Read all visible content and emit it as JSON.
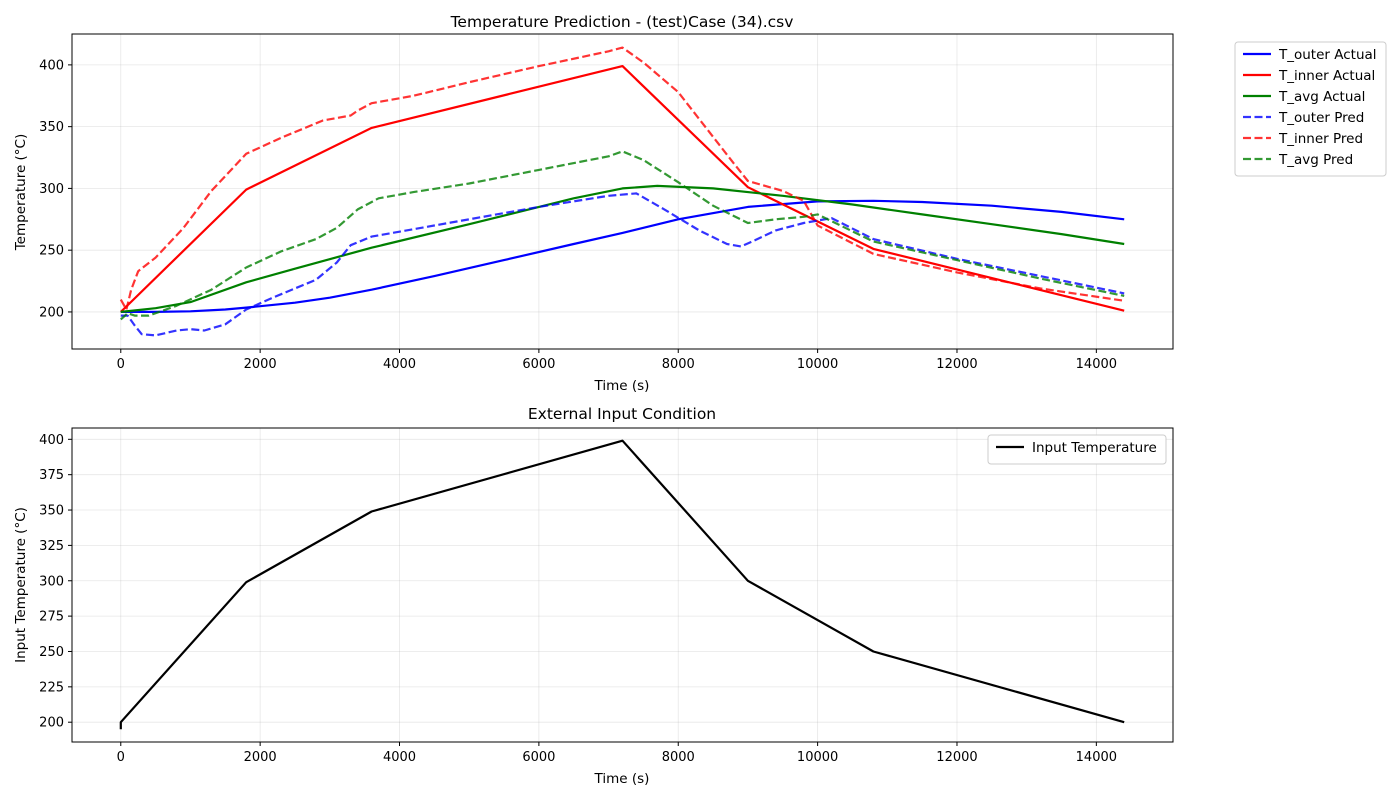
{
  "chart_data": [
    {
      "type": "line",
      "title": "Temperature Prediction - (test)Case (34).csv",
      "xlabel": "Time (s)",
      "ylabel": "Temperature (°C)",
      "xlim": [
        -700,
        15100
      ],
      "ylim": [
        170,
        425
      ],
      "xticks": [
        0,
        2000,
        4000,
        6000,
        8000,
        10000,
        12000,
        14000
      ],
      "yticks": [
        200,
        250,
        300,
        350,
        400
      ],
      "grid": true,
      "legend_position": "outside-top-right",
      "series": [
        {
          "name": "T_outer Actual",
          "color": "#0000ff",
          "style": "solid",
          "x": [
            0,
            500,
            1000,
            1500,
            1800,
            2500,
            3000,
            3600,
            4500,
            5500,
            6500,
            7200,
            8000,
            9000,
            10000,
            10800,
            11500,
            12500,
            13500,
            14400
          ],
          "y": [
            200,
            200,
            200.5,
            202,
            203.5,
            207.5,
            211.5,
            218,
            229,
            242,
            255,
            264,
            275,
            285,
            289.5,
            290,
            289,
            286,
            281,
            275
          ]
        },
        {
          "name": "T_inner Actual",
          "color": "#ff0000",
          "style": "solid",
          "x": [
            0,
            1800,
            3600,
            7200,
            9000,
            10800,
            14400
          ],
          "y": [
            200,
            299,
            349,
            399,
            301,
            251,
            201
          ]
        },
        {
          "name": "T_avg Actual",
          "color": "#008000",
          "style": "solid",
          "x": [
            0,
            500,
            1000,
            1800,
            2500,
            3600,
            5000,
            6500,
            7200,
            7700,
            8500,
            9500,
            10500,
            11500,
            12500,
            13500,
            14400
          ],
          "y": [
            200,
            203,
            208,
            224,
            235,
            252,
            271,
            292,
            300,
            302,
            300,
            294,
            287,
            279,
            271,
            263,
            255
          ]
        },
        {
          "name": "T_outer Pred",
          "color": "#0000ff",
          "style": "dashed",
          "x": [
            0,
            100,
            200,
            300,
            500,
            800,
            1000,
            1200,
            1500,
            1800,
            2200,
            2800,
            3100,
            3300,
            3600,
            4200,
            5000,
            6000,
            7000,
            7400,
            7800,
            8300,
            8700,
            8900,
            9100,
            9400,
            9800,
            10200,
            10800,
            12000,
            13200,
            14400
          ],
          "y": [
            197,
            197,
            189,
            182,
            181,
            185,
            186,
            185,
            190,
            202,
            212,
            226,
            240,
            254,
            261,
            267,
            275,
            285,
            294,
            296,
            283,
            266,
            255,
            253,
            258,
            266,
            272,
            276,
            259,
            243,
            229,
            215
          ]
        },
        {
          "name": "T_inner Pred",
          "color": "#ff0000",
          "style": "dashed",
          "x": [
            0,
            80,
            150,
            250,
            500,
            900,
            1300,
            1800,
            2300,
            2900,
            3300,
            3400,
            3600,
            4200,
            5000,
            6000,
            7000,
            7200,
            7500,
            8000,
            8800,
            9000,
            9500,
            9800,
            10000,
            10800,
            12000,
            13200,
            14400
          ],
          "y": [
            210,
            202,
            218,
            233,
            244,
            268,
            298,
            328,
            341,
            355,
            359,
            363,
            369,
            375,
            386,
            399,
            411,
            414,
            402,
            378,
            320,
            306,
            298,
            290,
            270,
            247,
            232,
            219,
            209
          ]
        },
        {
          "name": "T_avg Pred",
          "color": "#008000",
          "style": "dashed",
          "x": [
            0,
            100,
            200,
            400,
            800,
            1300,
            1800,
            2300,
            2800,
            3100,
            3400,
            3700,
            4200,
            5000,
            6000,
            7000,
            7200,
            7500,
            8000,
            8500,
            9000,
            9400,
            9800,
            10000,
            10800,
            12000,
            13200,
            14400
          ],
          "y": [
            194,
            199,
            197,
            197,
            205,
            218,
            236,
            249,
            259,
            268,
            283,
            292,
            297,
            304,
            315,
            326,
            330,
            323,
            305,
            286,
            272,
            275,
            277,
            279,
            257,
            242,
            227,
            213
          ]
        }
      ]
    },
    {
      "type": "line",
      "title": "External Input Condition",
      "xlabel": "Time (s)",
      "ylabel": "Input Temperature (°C)",
      "xlim": [
        -700,
        15100
      ],
      "ylim": [
        186,
        408
      ],
      "xticks": [
        0,
        2000,
        4000,
        6000,
        8000,
        10000,
        12000,
        14000
      ],
      "yticks": [
        200,
        225,
        250,
        275,
        300,
        325,
        350,
        375,
        400
      ],
      "grid": true,
      "legend_position": "upper right",
      "series": [
        {
          "name": "Input Temperature",
          "color": "#000000",
          "style": "solid",
          "x": [
            0,
            0,
            1800,
            3600,
            7200,
            9000,
            10800,
            14400
          ],
          "y": [
            195,
            200,
            299,
            349,
            399,
            300,
            250,
            200
          ]
        }
      ]
    }
  ]
}
